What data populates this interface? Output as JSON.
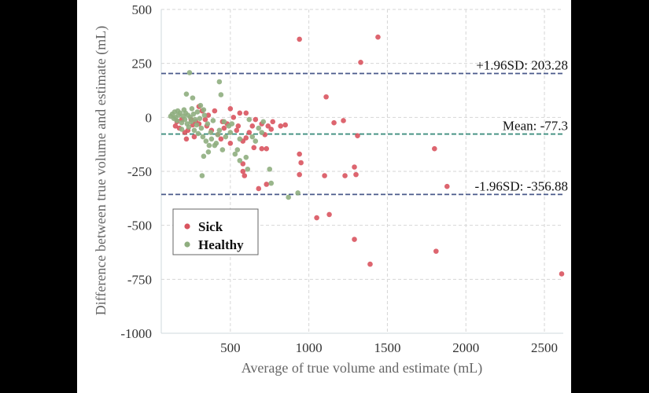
{
  "chart_data": {
    "type": "scatter",
    "title": "",
    "xlabel": "Average of true volume and estimate (mL)",
    "ylabel": "Difference between true volume and estimate (mL)",
    "xlim": [
      60,
      2620
    ],
    "ylim": [
      -1000,
      500
    ],
    "xticks": [
      500,
      1000,
      1500,
      2000,
      2500
    ],
    "yticks": [
      500,
      250,
      0,
      -250,
      -500,
      -750,
      -1000
    ],
    "grid": true,
    "legend_position": "lower-left",
    "reference_lines": [
      {
        "name": "upper_loa",
        "label": "+1.96SD: 203.28",
        "y": 203.28,
        "color": "#4a5a8a"
      },
      {
        "name": "mean",
        "label": "Mean: -77.3",
        "y": -77.3,
        "color": "#3f8f7f"
      },
      {
        "name": "lower_loa",
        "label": "-1.96SD: -356.88",
        "y": -356.88,
        "color": "#4a5a8a"
      }
    ],
    "series": [
      {
        "name": "Sick",
        "color": "#d9545f",
        "points": [
          [
            940,
            362
          ],
          [
            1440,
            372
          ],
          [
            1330,
            255
          ],
          [
            1110,
            95
          ],
          [
            1160,
            -25
          ],
          [
            1220,
            -15
          ],
          [
            1310,
            -85
          ],
          [
            940,
            -170
          ],
          [
            950,
            -210
          ],
          [
            940,
            -265
          ],
          [
            1100,
            -270
          ],
          [
            1230,
            -270
          ],
          [
            1290,
            -230
          ],
          [
            1300,
            -265
          ],
          [
            1050,
            -465
          ],
          [
            1130,
            -450
          ],
          [
            1290,
            -565
          ],
          [
            1390,
            -680
          ],
          [
            1800,
            -145
          ],
          [
            1880,
            -320
          ],
          [
            1810,
            -620
          ],
          [
            2610,
            -725
          ],
          [
            850,
            -35
          ],
          [
            760,
            -55
          ],
          [
            700,
            -145
          ],
          [
            730,
            -145
          ],
          [
            600,
            -95
          ],
          [
            580,
            -215
          ],
          [
            580,
            -250
          ],
          [
            590,
            -270
          ],
          [
            680,
            -330
          ],
          [
            730,
            -310
          ],
          [
            150,
            -40
          ],
          [
            160,
            -20
          ],
          [
            175,
            -50
          ],
          [
            190,
            -10
          ],
          [
            210,
            -70
          ],
          [
            230,
            -60
          ],
          [
            260,
            -35
          ],
          [
            280,
            -20
          ],
          [
            300,
            50
          ],
          [
            320,
            30
          ],
          [
            340,
            -10
          ],
          [
            360,
            10
          ],
          [
            380,
            -60
          ],
          [
            400,
            30
          ],
          [
            420,
            -80
          ],
          [
            440,
            -100
          ],
          [
            460,
            -50
          ],
          [
            480,
            -30
          ],
          [
            500,
            40
          ],
          [
            520,
            0
          ],
          [
            540,
            -60
          ],
          [
            560,
            20
          ],
          [
            580,
            -110
          ],
          [
            600,
            20
          ],
          [
            620,
            -70
          ],
          [
            640,
            -40
          ],
          [
            660,
            -10
          ],
          [
            700,
            -30
          ],
          [
            720,
            -80
          ],
          [
            740,
            -40
          ],
          [
            770,
            -20
          ],
          [
            250,
            -10
          ],
          [
            350,
            -40
          ],
          [
            450,
            -20
          ],
          [
            500,
            -120
          ],
          [
            550,
            -40
          ],
          [
            650,
            -140
          ],
          [
            820,
            -40
          ],
          [
            220,
            -100
          ],
          [
            300,
            -30
          ],
          [
            270,
            -90
          ]
        ]
      },
      {
        "name": "Healthy",
        "color": "#8fae7f",
        "points": [
          [
            240,
            207
          ],
          [
            430,
            165
          ],
          [
            440,
            105
          ],
          [
            220,
            108
          ],
          [
            260,
            90
          ],
          [
            330,
            35
          ],
          [
            310,
            55
          ],
          [
            120,
            5
          ],
          [
            130,
            15
          ],
          [
            140,
            -5
          ],
          [
            145,
            25
          ],
          [
            150,
            0
          ],
          [
            160,
            -15
          ],
          [
            165,
            30
          ],
          [
            170,
            10
          ],
          [
            180,
            20
          ],
          [
            190,
            -25
          ],
          [
            200,
            5
          ],
          [
            205,
            35
          ],
          [
            210,
            -10
          ],
          [
            215,
            20
          ],
          [
            225,
            -30
          ],
          [
            230,
            10
          ],
          [
            235,
            -45
          ],
          [
            245,
            0
          ],
          [
            250,
            -20
          ],
          [
            255,
            40
          ],
          [
            265,
            15
          ],
          [
            270,
            -60
          ],
          [
            275,
            -10
          ],
          [
            285,
            -35
          ],
          [
            290,
            25
          ],
          [
            295,
            -75
          ],
          [
            305,
            -5
          ],
          [
            315,
            -50
          ],
          [
            325,
            -90
          ],
          [
            335,
            10
          ],
          [
            345,
            -110
          ],
          [
            355,
            -30
          ],
          [
            365,
            -130
          ],
          [
            375,
            -70
          ],
          [
            390,
            -15
          ],
          [
            410,
            -120
          ],
          [
            430,
            -60
          ],
          [
            450,
            -150
          ],
          [
            470,
            -90
          ],
          [
            490,
            -40
          ],
          [
            510,
            -30
          ],
          [
            530,
            -170
          ],
          [
            545,
            -150
          ],
          [
            560,
            -200
          ],
          [
            600,
            -185
          ],
          [
            610,
            -240
          ],
          [
            640,
            -90
          ],
          [
            660,
            -110
          ],
          [
            700,
            -70
          ],
          [
            750,
            -240
          ],
          [
            760,
            -305
          ],
          [
            870,
            -370
          ],
          [
            930,
            -350
          ],
          [
            320,
            -270
          ],
          [
            330,
            -180
          ],
          [
            360,
            -160
          ],
          [
            400,
            -130
          ],
          [
            420,
            -80
          ],
          [
            460,
            -20
          ],
          [
            620,
            -10
          ],
          [
            680,
            -50
          ],
          [
            710,
            -20
          ],
          [
            560,
            -100
          ],
          [
            500,
            -70
          ],
          [
            380,
            -100
          ],
          [
            190,
            -55
          ]
        ]
      }
    ]
  }
}
